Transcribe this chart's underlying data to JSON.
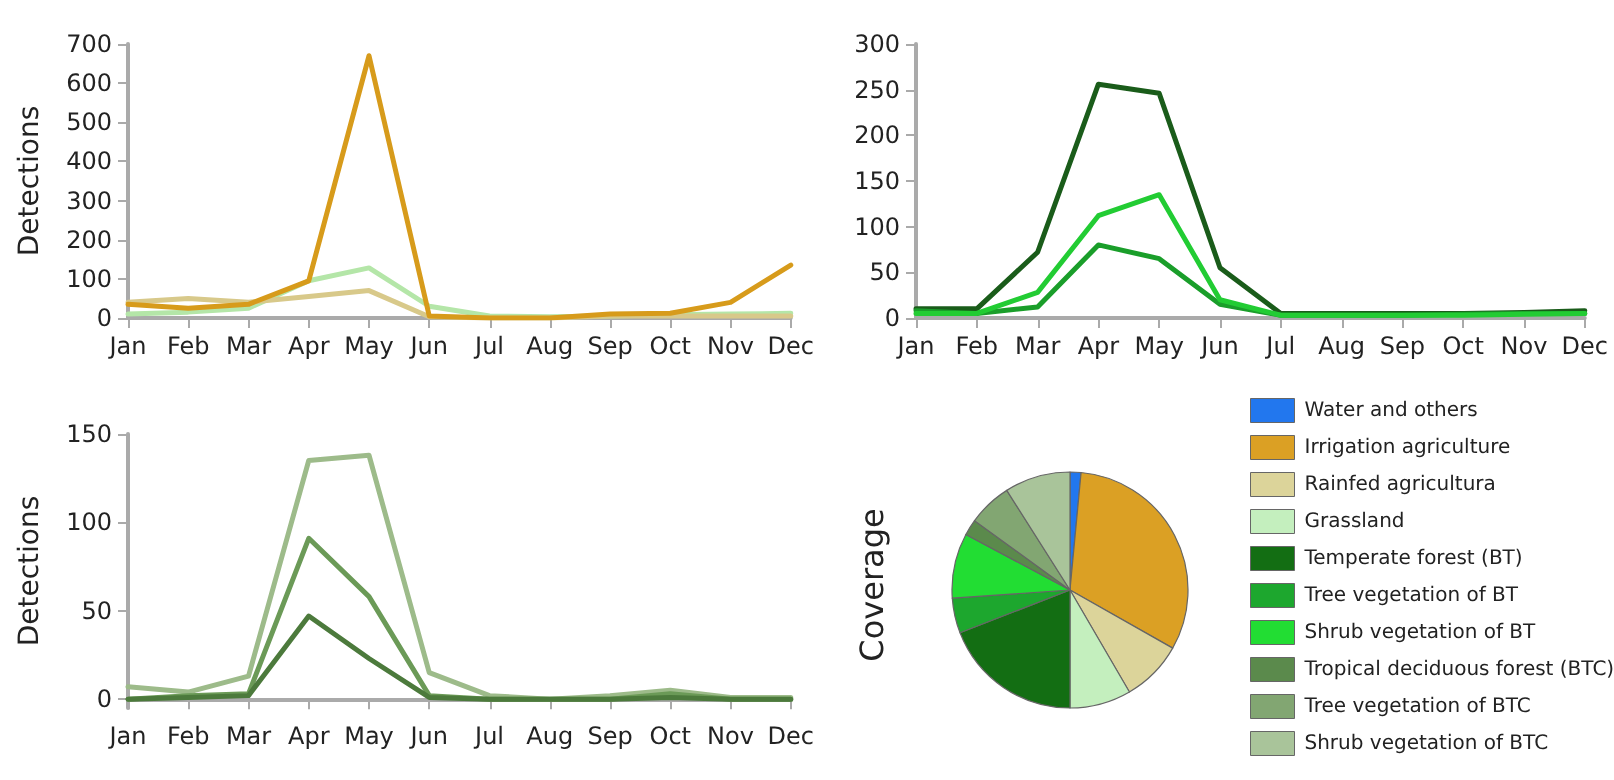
{
  "chart_data": [
    {
      "type": "line",
      "ylabel": "Detections",
      "categories": [
        "Jan",
        "Feb",
        "Mar",
        "Apr",
        "May",
        "Jun",
        "Jul",
        "Aug",
        "Sep",
        "Oct",
        "Nov",
        "Dec"
      ],
      "ylim": [
        0,
        700
      ],
      "yticks": [
        0,
        100,
        200,
        300,
        400,
        500,
        600,
        700
      ],
      "grid": false,
      "legend": false,
      "marker": "none",
      "line_style": "solid",
      "series": [
        {
          "color": "#b4e6a8",
          "values": [
            10,
            15,
            25,
            95,
            128,
            30,
            5,
            3,
            5,
            8,
            10,
            12
          ]
        },
        {
          "color": "#d8c98a",
          "values": [
            40,
            50,
            40,
            55,
            70,
            3,
            0,
            0,
            5,
            5,
            5,
            5
          ]
        },
        {
          "color": "#d79b1b",
          "values": [
            35,
            25,
            35,
            95,
            670,
            5,
            0,
            0,
            10,
            12,
            40,
            135
          ]
        }
      ]
    },
    {
      "type": "line",
      "categories": [
        "Jan",
        "Feb",
        "Mar",
        "Apr",
        "May",
        "Jun",
        "Jul",
        "Aug",
        "Sep",
        "Oct",
        "Nov",
        "Dec"
      ],
      "ylim": [
        0,
        300
      ],
      "yticks": [
        0,
        50,
        100,
        150,
        200,
        250,
        300
      ],
      "grid": false,
      "legend": false,
      "marker": "none",
      "line_style": "solid",
      "series": [
        {
          "color": "#1a5c1a",
          "values": [
            10,
            10,
            72,
            256,
            246,
            55,
            5,
            5,
            5,
            5,
            6,
            8
          ]
        },
        {
          "color": "#1a9e2a",
          "values": [
            8,
            5,
            12,
            80,
            65,
            15,
            3,
            3,
            3,
            4,
            5,
            5
          ]
        },
        {
          "color": "#22cc33",
          "values": [
            5,
            5,
            28,
            112,
            135,
            20,
            3,
            3,
            3,
            3,
            4,
            5
          ]
        }
      ]
    },
    {
      "type": "line",
      "ylabel": "Detections",
      "categories": [
        "Jan",
        "Feb",
        "Mar",
        "Apr",
        "May",
        "Jun",
        "Jul",
        "Aug",
        "Sep",
        "Oct",
        "Nov",
        "Dec"
      ],
      "ylim": [
        -5,
        150
      ],
      "yticks": [
        0,
        50,
        100,
        150
      ],
      "grid": false,
      "legend": false,
      "marker": "none",
      "line_style": "solid",
      "series": [
        {
          "color": "#9dbb8a",
          "values": [
            7,
            4,
            13,
            135,
            138,
            15,
            2,
            0,
            2,
            5,
            1,
            1
          ]
        },
        {
          "color": "#6b9a57",
          "values": [
            0,
            2,
            3,
            91,
            58,
            2,
            0,
            0,
            0,
            3,
            0,
            0
          ]
        },
        {
          "color": "#4c7a3c",
          "values": [
            0,
            1,
            2,
            47,
            23,
            1,
            0,
            0,
            0,
            1,
            0,
            0
          ]
        }
      ]
    },
    {
      "type": "pie",
      "ylabel": "Coverage",
      "legend": "right",
      "categories": [
        "Water and others",
        "Irrigation agriculture",
        "Rainfed agricultura",
        "Grassland",
        "Temperate forest (BT)",
        "Tree vegetation of BT",
        "Shrub vegetation of BT",
        "Tropical deciduous forest (BTC)",
        "Tree vegetation of BTC",
        "Shrub vegetation of BTC"
      ],
      "values": [
        1.5,
        31.7,
        8.4,
        8.4,
        19.1,
        4.8,
        8.9,
        2.2,
        6.0,
        9.0
      ],
      "colors": [
        "#2277ee",
        "#dba024",
        "#dcd49a",
        "#c4efbe",
        "#136e13",
        "#1da72e",
        "#22dd33",
        "#5b8a4c",
        "#82a672",
        "#a9c49a"
      ]
    }
  ]
}
